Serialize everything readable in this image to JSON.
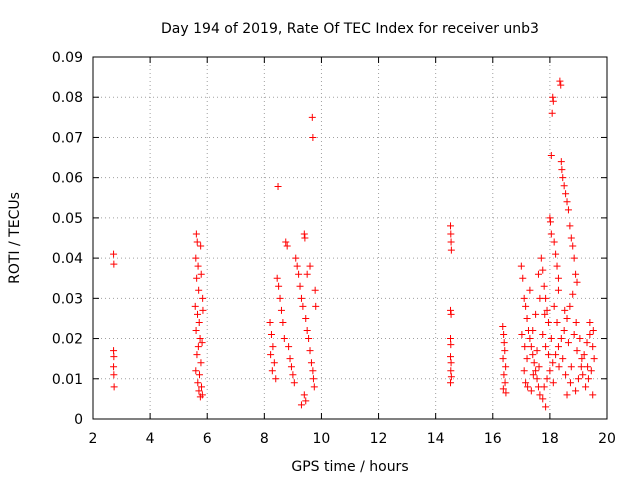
{
  "chart_data": {
    "type": "scatter",
    "title": "Day 194 of 2019, Rate Of TEC Index for receiver unb3",
    "xlabel": "GPS time / hours",
    "ylabel": "ROTI / TECUs",
    "xlim": [
      2,
      20
    ],
    "ylim": [
      0,
      0.09
    ],
    "grid": true,
    "marker": "+",
    "color": "#ff0000",
    "x_ticks": [
      2,
      4,
      6,
      8,
      10,
      12,
      14,
      16,
      18,
      20
    ],
    "x_tick_labels": [
      "2",
      "4",
      "6",
      "8",
      "10",
      "12",
      "14",
      "16",
      "18",
      "20"
    ],
    "y_ticks": [
      0,
      0.01,
      0.02,
      0.03,
      0.04,
      0.05,
      0.06,
      0.07,
      0.08,
      0.09
    ],
    "y_tick_labels": [
      "0",
      "0.01",
      "0.02",
      "0.03",
      "0.04",
      "0.05",
      "0.06",
      "0.07",
      "0.08",
      "0.09"
    ],
    "series": [
      {
        "name": "ROTI",
        "points": [
          [
            2.72,
            0.041
          ],
          [
            2.73,
            0.0385
          ],
          [
            2.72,
            0.017
          ],
          [
            2.73,
            0.0155
          ],
          [
            2.72,
            0.013
          ],
          [
            2.73,
            0.011
          ],
          [
            2.74,
            0.008
          ],
          [
            5.62,
            0.046
          ],
          [
            5.65,
            0.044
          ],
          [
            5.6,
            0.04
          ],
          [
            5.68,
            0.038
          ],
          [
            5.63,
            0.035
          ],
          [
            5.7,
            0.032
          ],
          [
            5.58,
            0.028
          ],
          [
            5.66,
            0.026
          ],
          [
            5.72,
            0.024
          ],
          [
            5.61,
            0.022
          ],
          [
            5.75,
            0.02
          ],
          [
            5.69,
            0.018
          ],
          [
            5.64,
            0.016
          ],
          [
            5.78,
            0.014
          ],
          [
            5.6,
            0.012
          ],
          [
            5.73,
            0.011
          ],
          [
            5.67,
            0.009
          ],
          [
            5.8,
            0.008
          ],
          [
            5.71,
            0.007
          ],
          [
            5.83,
            0.006
          ],
          [
            5.76,
            0.0055
          ],
          [
            5.85,
            0.027
          ],
          [
            5.84,
            0.03
          ],
          [
            5.82,
            0.019
          ],
          [
            5.79,
            0.036
          ],
          [
            5.77,
            0.043
          ],
          [
            8.2,
            0.024
          ],
          [
            8.25,
            0.021
          ],
          [
            8.3,
            0.018
          ],
          [
            8.22,
            0.016
          ],
          [
            8.35,
            0.014
          ],
          [
            8.28,
            0.012
          ],
          [
            8.4,
            0.01
          ],
          [
            8.45,
            0.035
          ],
          [
            8.5,
            0.033
          ],
          [
            8.48,
            0.0578
          ],
          [
            8.55,
            0.03
          ],
          [
            8.6,
            0.027
          ],
          [
            8.65,
            0.024
          ],
          [
            8.7,
            0.02
          ],
          [
            8.75,
            0.044
          ],
          [
            8.8,
            0.043
          ],
          [
            8.85,
            0.018
          ],
          [
            8.9,
            0.015
          ],
          [
            8.95,
            0.013
          ],
          [
            9.0,
            0.011
          ],
          [
            9.05,
            0.009
          ],
          [
            9.1,
            0.04
          ],
          [
            9.15,
            0.038
          ],
          [
            9.2,
            0.036
          ],
          [
            9.25,
            0.033
          ],
          [
            9.3,
            0.03
          ],
          [
            9.35,
            0.028
          ],
          [
            9.4,
            0.046
          ],
          [
            9.42,
            0.045
          ],
          [
            9.45,
            0.025
          ],
          [
            9.5,
            0.022
          ],
          [
            9.55,
            0.02
          ],
          [
            9.6,
            0.017
          ],
          [
            9.65,
            0.014
          ],
          [
            9.7,
            0.012
          ],
          [
            9.72,
            0.01
          ],
          [
            9.75,
            0.008
          ],
          [
            9.4,
            0.006
          ],
          [
            9.45,
            0.0045
          ],
          [
            9.3,
            0.0035
          ],
          [
            9.78,
            0.032
          ],
          [
            9.8,
            0.028
          ],
          [
            9.68,
            0.075
          ],
          [
            9.7,
            0.07
          ],
          [
            9.6,
            0.038
          ],
          [
            9.5,
            0.036
          ],
          [
            14.52,
            0.048
          ],
          [
            14.53,
            0.046
          ],
          [
            14.54,
            0.044
          ],
          [
            14.55,
            0.042
          ],
          [
            14.52,
            0.027
          ],
          [
            14.54,
            0.026
          ],
          [
            14.52,
            0.02
          ],
          [
            14.53,
            0.0185
          ],
          [
            14.52,
            0.0155
          ],
          [
            14.54,
            0.014
          ],
          [
            14.53,
            0.012
          ],
          [
            14.55,
            0.0105
          ],
          [
            14.52,
            0.009
          ],
          [
            16.35,
            0.023
          ],
          [
            16.38,
            0.021
          ],
          [
            16.4,
            0.019
          ],
          [
            16.42,
            0.017
          ],
          [
            16.36,
            0.015
          ],
          [
            16.45,
            0.013
          ],
          [
            16.39,
            0.011
          ],
          [
            16.43,
            0.009
          ],
          [
            16.37,
            0.0075
          ],
          [
            16.46,
            0.0065
          ],
          [
            17.0,
            0.038
          ],
          [
            17.05,
            0.035
          ],
          [
            17.1,
            0.03
          ],
          [
            17.15,
            0.028
          ],
          [
            17.2,
            0.025
          ],
          [
            17.25,
            0.022
          ],
          [
            17.3,
            0.02
          ],
          [
            17.35,
            0.018
          ],
          [
            17.4,
            0.016
          ],
          [
            17.45,
            0.014
          ],
          [
            17.5,
            0.012
          ],
          [
            17.55,
            0.01
          ],
          [
            17.6,
            0.008
          ],
          [
            17.65,
            0.006
          ],
          [
            17.7,
            0.04
          ],
          [
            17.75,
            0.037
          ],
          [
            17.8,
            0.033
          ],
          [
            17.85,
            0.03
          ],
          [
            17.9,
            0.027
          ],
          [
            17.95,
            0.024
          ],
          [
            18.0,
            0.05
          ],
          [
            18.02,
            0.049
          ],
          [
            18.05,
            0.046
          ],
          [
            18.1,
            0.08
          ],
          [
            18.12,
            0.079
          ],
          [
            18.08,
            0.076
          ],
          [
            18.05,
            0.0655
          ],
          [
            18.15,
            0.044
          ],
          [
            18.2,
            0.041
          ],
          [
            18.25,
            0.038
          ],
          [
            18.3,
            0.035
          ],
          [
            18.35,
            0.084
          ],
          [
            18.38,
            0.083
          ],
          [
            18.4,
            0.064
          ],
          [
            18.42,
            0.062
          ],
          [
            18.45,
            0.06
          ],
          [
            18.5,
            0.058
          ],
          [
            18.55,
            0.056
          ],
          [
            18.6,
            0.054
          ],
          [
            18.65,
            0.052
          ],
          [
            18.7,
            0.048
          ],
          [
            18.75,
            0.045
          ],
          [
            18.8,
            0.043
          ],
          [
            18.85,
            0.04
          ],
          [
            18.9,
            0.036
          ],
          [
            18.95,
            0.034
          ],
          [
            18.8,
            0.031
          ],
          [
            18.7,
            0.028
          ],
          [
            18.6,
            0.025
          ],
          [
            18.5,
            0.022
          ],
          [
            18.4,
            0.02
          ],
          [
            18.3,
            0.018
          ],
          [
            18.2,
            0.016
          ],
          [
            18.1,
            0.014
          ],
          [
            18.0,
            0.012
          ],
          [
            17.9,
            0.01
          ],
          [
            17.8,
            0.008
          ],
          [
            17.85,
            0.003
          ],
          [
            17.75,
            0.005
          ],
          [
            18.6,
            0.006
          ],
          [
            18.9,
            0.007
          ],
          [
            19.0,
            0.01
          ],
          [
            19.1,
            0.013
          ],
          [
            19.2,
            0.016
          ],
          [
            19.3,
            0.019
          ],
          [
            19.4,
            0.021
          ],
          [
            19.5,
            0.018
          ],
          [
            19.55,
            0.015
          ],
          [
            19.45,
            0.012
          ],
          [
            19.35,
            0.01
          ],
          [
            19.25,
            0.008
          ],
          [
            19.5,
            0.006
          ],
          [
            19.4,
            0.024
          ],
          [
            18.3,
            0.032
          ],
          [
            17.6,
            0.036
          ],
          [
            17.3,
            0.032
          ],
          [
            17.2,
            0.015
          ],
          [
            17.1,
            0.012
          ],
          [
            17.4,
            0.022
          ],
          [
            17.5,
            0.026
          ],
          [
            17.65,
            0.03
          ],
          [
            17.85,
            0.018
          ],
          [
            18.15,
            0.028
          ],
          [
            18.45,
            0.015
          ],
          [
            18.55,
            0.011
          ],
          [
            18.65,
            0.019
          ],
          [
            18.75,
            0.013
          ],
          [
            18.85,
            0.021
          ],
          [
            18.95,
            0.017
          ],
          [
            19.05,
            0.02
          ],
          [
            19.15,
            0.011
          ],
          [
            17.15,
            0.009
          ],
          [
            17.35,
            0.007
          ],
          [
            17.55,
            0.017
          ],
          [
            17.75,
            0.021
          ],
          [
            17.95,
            0.016
          ],
          [
            18.25,
            0.024
          ],
          [
            18.05,
            0.02
          ],
          [
            17.02,
            0.021
          ],
          [
            17.12,
            0.018
          ],
          [
            17.22,
            0.008
          ],
          [
            17.42,
            0.011
          ],
          [
            17.62,
            0.013
          ],
          [
            17.82,
            0.026
          ],
          [
            18.12,
            0.009
          ],
          [
            18.32,
            0.013
          ],
          [
            18.52,
            0.027
          ],
          [
            18.72,
            0.009
          ],
          [
            18.92,
            0.024
          ],
          [
            19.12,
            0.015
          ],
          [
            19.32,
            0.013
          ],
          [
            19.52,
            0.022
          ]
        ]
      }
    ]
  }
}
